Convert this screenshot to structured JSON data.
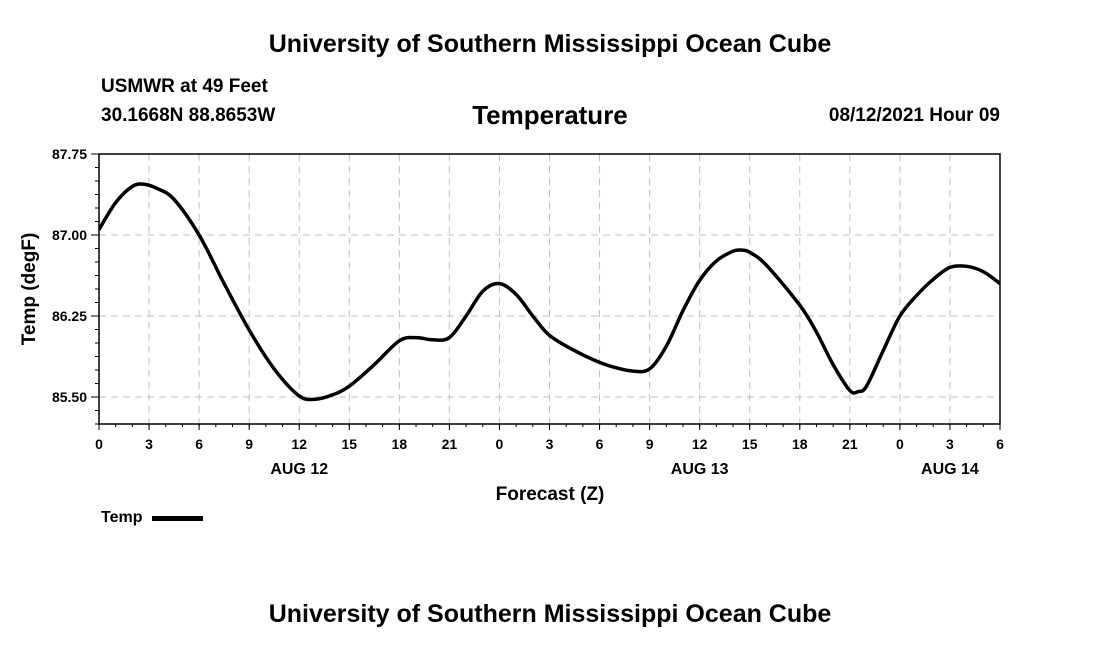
{
  "header": {
    "title": "University of Southern Mississippi Ocean Cube",
    "station": "USMWR at 49 Feet",
    "coords": "30.1668N  88.8653W",
    "datetime": "08/12/2021 Hour 09"
  },
  "footer": {
    "title": "University of Southern Mississippi Ocean Cube"
  },
  "chart_data": {
    "type": "line",
    "title": "Temperature",
    "xlabel": "Forecast (Z)",
    "ylabel": "Temp (degF)",
    "ylim": [
      85.25,
      87.75
    ],
    "xlim": [
      0,
      54
    ],
    "grid": true,
    "line_color": "#000000",
    "grid_color": "#c0c0c0",
    "legend": {
      "position": "bottom-left",
      "entries": [
        "Temp"
      ]
    },
    "y_ticks": [
      {
        "value": 85.5,
        "label": "85.50"
      },
      {
        "value": 86.25,
        "label": "86.25"
      },
      {
        "value": 87.0,
        "label": "87.00"
      },
      {
        "value": 87.75,
        "label": "87.75"
      }
    ],
    "x_ticks": [
      {
        "value": 0,
        "label": "0"
      },
      {
        "value": 3,
        "label": "3"
      },
      {
        "value": 6,
        "label": "6"
      },
      {
        "value": 9,
        "label": "9"
      },
      {
        "value": 12,
        "label": "12"
      },
      {
        "value": 15,
        "label": "15"
      },
      {
        "value": 18,
        "label": "18"
      },
      {
        "value": 21,
        "label": "21"
      },
      {
        "value": 24,
        "label": "0"
      },
      {
        "value": 27,
        "label": "3"
      },
      {
        "value": 30,
        "label": "6"
      },
      {
        "value": 33,
        "label": "9"
      },
      {
        "value": 36,
        "label": "12"
      },
      {
        "value": 39,
        "label": "15"
      },
      {
        "value": 42,
        "label": "18"
      },
      {
        "value": 45,
        "label": "21"
      },
      {
        "value": 48,
        "label": "0"
      },
      {
        "value": 51,
        "label": "3"
      },
      {
        "value": 54,
        "label": "6"
      }
    ],
    "date_labels": [
      {
        "value": 12,
        "label": "AUG 12"
      },
      {
        "value": 36,
        "label": "AUG 13"
      },
      {
        "value": 51,
        "label": "AUG 14"
      }
    ],
    "series": [
      {
        "name": "Temp",
        "x": [
          0,
          1,
          2,
          2.7,
          3.5,
          4.5,
          6,
          7.5,
          9,
          10.5,
          12,
          13,
          14,
          15,
          16.5,
          18,
          19,
          20,
          21,
          22,
          23,
          24,
          25,
          26,
          27,
          28.5,
          30,
          31,
          32,
          33,
          34,
          35,
          36,
          37,
          38,
          38.5,
          39,
          40,
          42,
          43,
          44,
          45,
          45.5,
          46,
          47,
          48,
          49,
          50,
          51,
          52,
          53,
          54
        ],
        "y": [
          87.05,
          87.3,
          87.45,
          87.47,
          87.43,
          87.33,
          87.0,
          86.55,
          86.12,
          85.76,
          85.51,
          85.48,
          85.52,
          85.6,
          85.8,
          86.02,
          86.05,
          86.03,
          86.05,
          86.25,
          86.48,
          86.55,
          86.45,
          86.25,
          86.07,
          85.93,
          85.82,
          85.77,
          85.74,
          85.76,
          85.97,
          86.3,
          86.58,
          86.76,
          86.85,
          86.86,
          86.84,
          86.72,
          86.35,
          86.1,
          85.8,
          85.56,
          85.55,
          85.6,
          85.93,
          86.25,
          86.44,
          86.59,
          86.7,
          86.71,
          86.66,
          86.55
        ]
      }
    ]
  }
}
